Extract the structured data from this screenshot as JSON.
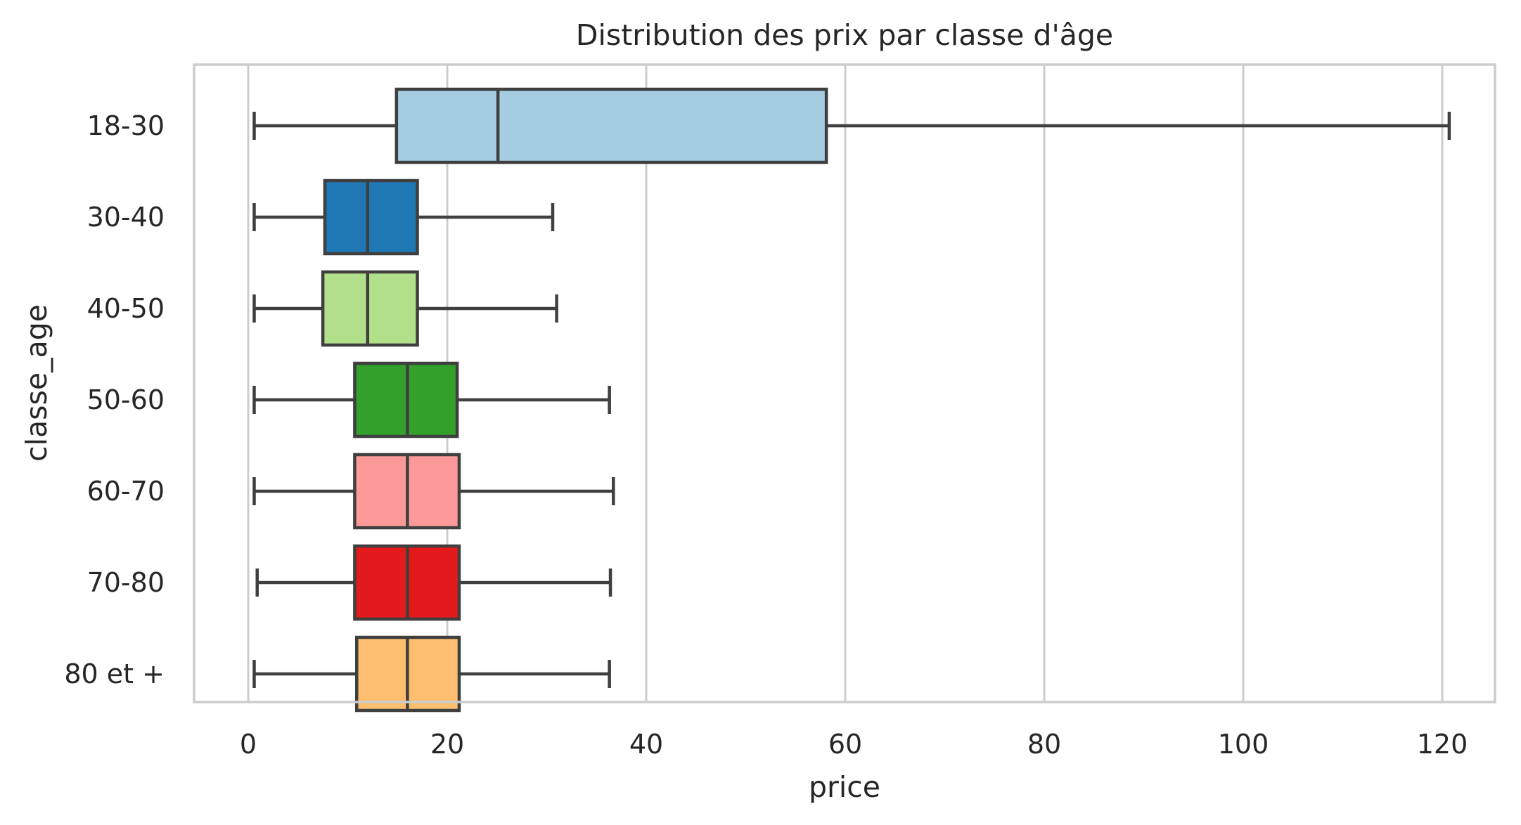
{
  "chart_data": {
    "type": "boxplot",
    "orientation": "horizontal",
    "title": "Distribution des prix par classe d'âge",
    "xlabel": "price",
    "ylabel": "classe_age",
    "xlim": [
      -5.5,
      127
    ],
    "xticks": [
      0,
      20,
      40,
      60,
      80,
      100,
      120
    ],
    "grid": "vertical",
    "legend": "none",
    "categories": [
      "18-30",
      "30-40",
      "40-50",
      "50-60",
      "60-70",
      "70-80",
      "80 et +"
    ],
    "boxes": [
      {
        "category": "18-30",
        "whisker_low": 0.6,
        "q1": 14.9,
        "median": 25.1,
        "q3": 58.1,
        "whisker_high": 120.7,
        "color": "#a6cee3"
      },
      {
        "category": "30-40",
        "whisker_low": 0.6,
        "q1": 7.7,
        "median": 12.0,
        "q3": 17.0,
        "whisker_high": 30.6,
        "color": "#1f78b4"
      },
      {
        "category": "40-50",
        "whisker_low": 0.6,
        "q1": 7.5,
        "median": 12.0,
        "q3": 17.0,
        "whisker_high": 31.0,
        "color": "#b2df8a"
      },
      {
        "category": "50-60",
        "whisker_low": 0.6,
        "q1": 10.7,
        "median": 16.0,
        "q3": 21.0,
        "whisker_high": 36.3,
        "color": "#33a02c"
      },
      {
        "category": "60-70",
        "whisker_low": 0.6,
        "q1": 10.7,
        "median": 16.0,
        "q3": 21.2,
        "whisker_high": 36.7,
        "color": "#fb9a99"
      },
      {
        "category": "70-80",
        "whisker_low": 0.9,
        "q1": 10.7,
        "median": 16.0,
        "q3": 21.2,
        "whisker_high": 36.4,
        "color": "#e31a1c"
      },
      {
        "category": "80 et +",
        "whisker_low": 0.6,
        "q1": 10.9,
        "median": 16.0,
        "q3": 21.2,
        "whisker_high": 36.3,
        "color": "#fdbf6f"
      }
    ]
  }
}
